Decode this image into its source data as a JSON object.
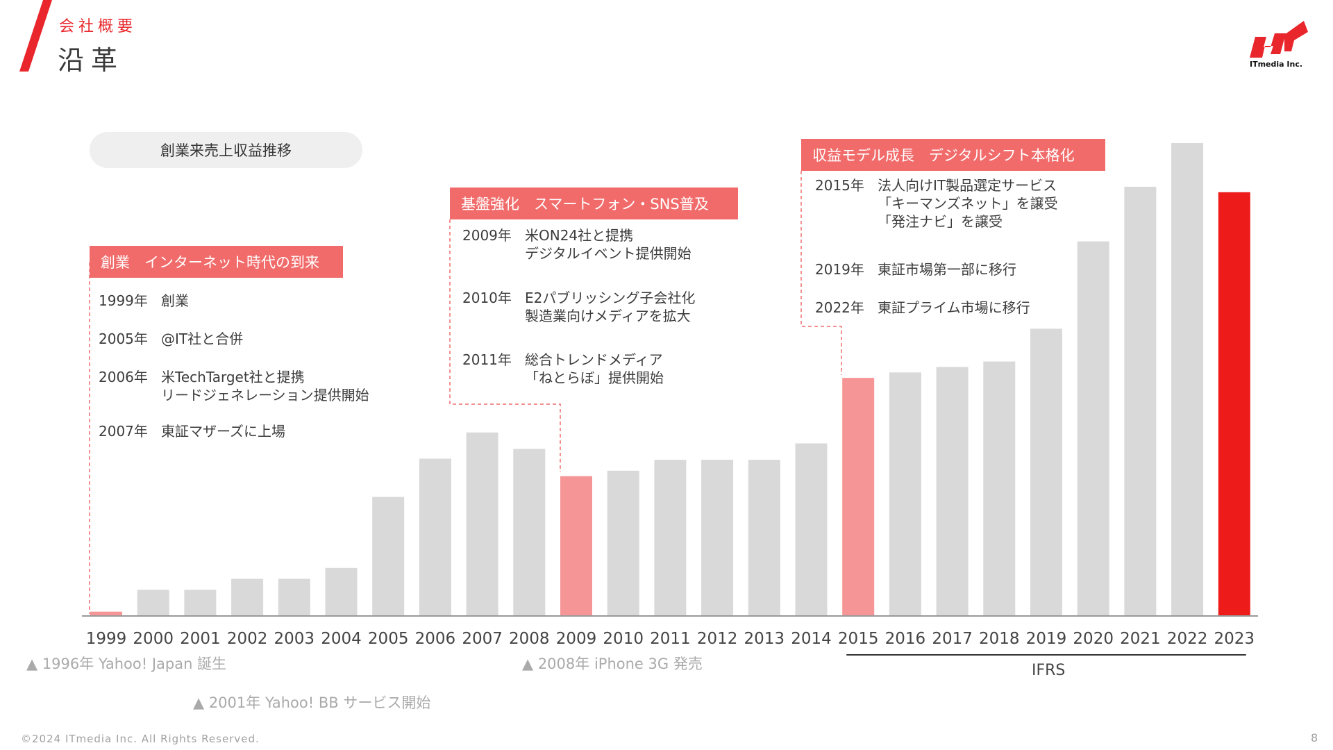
{
  "header": {
    "section_label": "会社概要",
    "title": "沿革"
  },
  "logo": {
    "text": "ITmedia Inc."
  },
  "chart_pill": "創業来売上収益推移",
  "chart_data": {
    "type": "bar",
    "title": "創業来売上収益推移",
    "categories": [
      "1999",
      "2000",
      "2001",
      "2002",
      "2003",
      "2004",
      "2005",
      "2006",
      "2007",
      "2008",
      "2009",
      "2010",
      "2011",
      "2012",
      "2013",
      "2014",
      "2015",
      "2016",
      "2017",
      "2018",
      "2019",
      "2020",
      "2021",
      "2022",
      "2023"
    ],
    "values": [
      4,
      24,
      24,
      34,
      34,
      44,
      109,
      144,
      168,
      153,
      128,
      133,
      143,
      143,
      143,
      158,
      218,
      223,
      228,
      233,
      263,
      343,
      393,
      433,
      388
    ],
    "highlight": {
      "1999": "pink",
      "2009": "pink",
      "2015": "pink",
      "2023": "red"
    },
    "ylim": [
      0,
      440
    ],
    "units": "relative (no axis printed)",
    "grid": false,
    "ifrs_from": "2015"
  },
  "colors": {
    "bar_default": "#d9d9d9",
    "bar_highlight": "#f59595",
    "bar_current": "#ee1b1b",
    "accent": "#e8262b",
    "era_header": "#f26b6b"
  },
  "eras": [
    {
      "header": "創業　インターネット時代の到来",
      "events": [
        {
          "year": "1999年",
          "text": "創業"
        },
        {
          "year": "2005年",
          "text": "@IT社と合併"
        },
        {
          "year": "2006年",
          "text": "米TechTarget社と提携\nリードジェネレーション提供開始"
        },
        {
          "year": "2007年",
          "text": "東証マザーズに上場"
        }
      ]
    },
    {
      "header": "基盤強化　スマートフォン・SNS普及",
      "events": [
        {
          "year": "2009年",
          "text": "米ON24社と提携\nデジタルイベント提供開始"
        },
        {
          "year": "2010年",
          "text": "E2パブリッシング子会社化\n製造業向けメディアを拡大"
        },
        {
          "year": "2011年",
          "text": "総合トレンドメディア\n「ねとらぼ」提供開始"
        }
      ]
    },
    {
      "header": "収益モデル成長　デジタルシフト本格化",
      "events": [
        {
          "year": "2015年",
          "text": "法人向けIT製品選定サービス\n「キーマンズネット」を譲受\n「発注ナビ」を譲受"
        },
        {
          "year": "2019年",
          "text": "東証市場第一部に移行"
        },
        {
          "year": "2022年",
          "text": "東証プライム市場に移行"
        }
      ]
    }
  ],
  "notes": [
    "▲ 1996年 Yahoo! Japan 誕生",
    "▲ 2008年 iPhone 3G 発売",
    "▲ 2001年 Yahoo! BB サービス開始"
  ],
  "ifrs_label": "IFRS",
  "footer": {
    "copyright": "©2024 ITmedia Inc. All Rights Reserved.",
    "page_number": "8"
  }
}
